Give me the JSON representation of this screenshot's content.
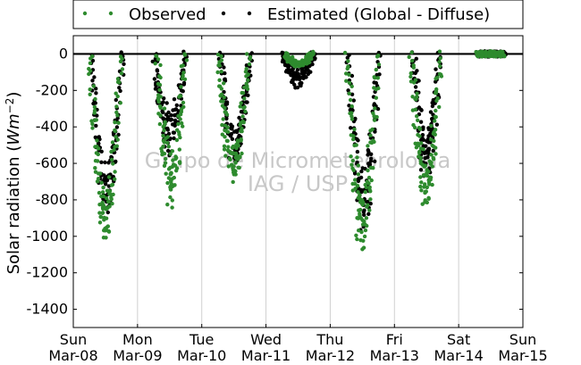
{
  "chart_data": {
    "type": "scatter",
    "title": "",
    "xlabel": "",
    "ylabel": "Solar radiation (Wm⁻²)",
    "ylabel_text": "Solar radiation (",
    "ylabel_unit": "Wm",
    "ylabel_exp": "−2",
    "ylabel_close": ")",
    "ylim": [
      -1500,
      100
    ],
    "yticks": [
      -1400,
      -1200,
      -1000,
      -800,
      -600,
      -400,
      -200,
      0
    ],
    "xlim": [
      0,
      7
    ],
    "x_unit": "days since Sun Mar-08 00:00",
    "xticks": [
      {
        "day": "Sun",
        "date": "Mar-08"
      },
      {
        "day": "Mon",
        "date": "Mar-09"
      },
      {
        "day": "Tue",
        "date": "Mar-10"
      },
      {
        "day": "Wed",
        "date": "Mar-11"
      },
      {
        "day": "Thu",
        "date": "Mar-12"
      },
      {
        "day": "Fri",
        "date": "Mar-13"
      },
      {
        "day": "Sat",
        "date": "Mar-14"
      },
      {
        "day": "Sun",
        "date": "Mar-15"
      }
    ],
    "grid": "vertical",
    "legend_position": "top, outside plot",
    "series": [
      {
        "name": "Observed",
        "color": "#2e8b2e",
        "marker": "dot",
        "days": [
          {
            "day": 0,
            "start": 0.26,
            "end": 0.74,
            "peak": -1050,
            "noise": 0.22
          },
          {
            "day": 1,
            "start": 0.3,
            "end": 0.74,
            "peak": -880,
            "noise": 0.4
          },
          {
            "day": 2,
            "start": 0.26,
            "end": 0.72,
            "peak": -700,
            "noise": 0.3
          },
          {
            "day": 3,
            "start": 0.3,
            "end": 0.72,
            "peak": -60,
            "noise": 0.1
          },
          {
            "day": 4,
            "start": 0.26,
            "end": 0.74,
            "peak": -1110,
            "noise": 0.35
          },
          {
            "day": 5,
            "start": 0.26,
            "end": 0.72,
            "peak": -840,
            "noise": 0.3
          },
          {
            "day": 6,
            "start": 0.3,
            "end": 0.7,
            "peak": 0,
            "noise": 0.0
          }
        ]
      },
      {
        "name": "Estimated (Global - Diffuse)",
        "color": "#000000",
        "marker": "dot",
        "days": [
          {
            "day": 0,
            "start": 0.28,
            "end": 0.76,
            "peak": -890,
            "noise": 0.3
          },
          {
            "day": 1,
            "start": 0.26,
            "end": 0.74,
            "peak": -560,
            "noise": 0.45
          },
          {
            "day": 2,
            "start": 0.28,
            "end": 0.76,
            "peak": -600,
            "noise": 0.35
          },
          {
            "day": 3,
            "start": 0.26,
            "end": 0.74,
            "peak": -180,
            "noise": 0.5
          },
          {
            "day": 4,
            "start": 0.28,
            "end": 0.76,
            "peak": -960,
            "noise": 0.35
          },
          {
            "day": 5,
            "start": 0.3,
            "end": 0.7,
            "peak": -700,
            "noise": 0.4
          },
          {
            "day": 6,
            "start": 0.3,
            "end": 0.7,
            "peak": 0,
            "noise": 0.0
          }
        ]
      }
    ],
    "annotations": [
      "Grupo de Micrometeorologia",
      "IAG / USP"
    ]
  }
}
